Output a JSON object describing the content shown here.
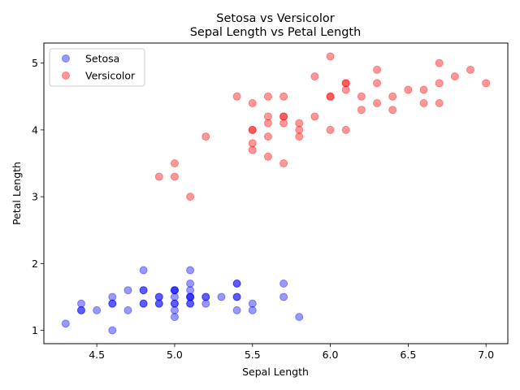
{
  "chart_data": {
    "type": "scatter",
    "title": "Setosa vs Versicolor",
    "subtitle": "Sepal Length vs Petal Length",
    "xlabel": "Sepal Length",
    "ylabel": "Petal Length",
    "xlim": [
      4.16,
      7.14
    ],
    "ylim": [
      0.8,
      5.3
    ],
    "xticks": [
      "4.5",
      "5.0",
      "5.5",
      "6.0",
      "6.5",
      "7.0"
    ],
    "yticks": [
      "1",
      "2",
      "3",
      "4",
      "5"
    ],
    "grid": false,
    "legend_position": "top-left",
    "series": [
      {
        "name": "Setosa",
        "color": "#0000ff",
        "points": [
          [
            5.1,
            1.4
          ],
          [
            4.9,
            1.4
          ],
          [
            4.7,
            1.3
          ],
          [
            4.6,
            1.5
          ],
          [
            5.0,
            1.4
          ],
          [
            5.4,
            1.7
          ],
          [
            4.6,
            1.4
          ],
          [
            5.0,
            1.5
          ],
          [
            4.4,
            1.4
          ],
          [
            4.9,
            1.5
          ],
          [
            5.4,
            1.5
          ],
          [
            4.8,
            1.6
          ],
          [
            4.8,
            1.4
          ],
          [
            4.3,
            1.1
          ],
          [
            5.8,
            1.2
          ],
          [
            5.7,
            1.5
          ],
          [
            5.4,
            1.3
          ],
          [
            5.1,
            1.4
          ],
          [
            5.7,
            1.7
          ],
          [
            5.1,
            1.5
          ],
          [
            5.4,
            1.7
          ],
          [
            5.1,
            1.5
          ],
          [
            4.6,
            1.0
          ],
          [
            5.1,
            1.7
          ],
          [
            4.8,
            1.9
          ],
          [
            5.0,
            1.6
          ],
          [
            5.0,
            1.6
          ],
          [
            5.2,
            1.5
          ],
          [
            5.2,
            1.4
          ],
          [
            4.7,
            1.6
          ],
          [
            4.8,
            1.6
          ],
          [
            5.4,
            1.5
          ],
          [
            5.2,
            1.5
          ],
          [
            5.5,
            1.4
          ],
          [
            4.9,
            1.5
          ],
          [
            5.0,
            1.2
          ],
          [
            5.5,
            1.3
          ],
          [
            4.9,
            1.4
          ],
          [
            4.4,
            1.3
          ],
          [
            5.1,
            1.5
          ],
          [
            5.0,
            1.3
          ],
          [
            4.5,
            1.3
          ],
          [
            4.4,
            1.3
          ],
          [
            5.0,
            1.6
          ],
          [
            5.1,
            1.9
          ],
          [
            4.8,
            1.4
          ],
          [
            5.1,
            1.6
          ],
          [
            4.6,
            1.4
          ],
          [
            5.3,
            1.5
          ],
          [
            5.0,
            1.4
          ]
        ]
      },
      {
        "name": "Versicolor",
        "color": "#ff0000",
        "points": [
          [
            7.0,
            4.7
          ],
          [
            6.4,
            4.5
          ],
          [
            6.9,
            4.9
          ],
          [
            5.5,
            4.0
          ],
          [
            6.5,
            4.6
          ],
          [
            5.7,
            4.5
          ],
          [
            6.3,
            4.7
          ],
          [
            4.9,
            3.3
          ],
          [
            6.6,
            4.6
          ],
          [
            5.2,
            3.9
          ],
          [
            5.0,
            3.5
          ],
          [
            5.9,
            4.2
          ],
          [
            6.0,
            4.0
          ],
          [
            6.1,
            4.7
          ],
          [
            5.6,
            3.6
          ],
          [
            6.7,
            4.4
          ],
          [
            5.6,
            4.5
          ],
          [
            5.8,
            4.1
          ],
          [
            6.2,
            4.5
          ],
          [
            5.6,
            3.9
          ],
          [
            5.9,
            4.8
          ],
          [
            6.1,
            4.0
          ],
          [
            6.3,
            4.9
          ],
          [
            6.1,
            4.7
          ],
          [
            6.4,
            4.3
          ],
          [
            6.6,
            4.4
          ],
          [
            6.8,
            4.8
          ],
          [
            6.7,
            5.0
          ],
          [
            6.0,
            4.5
          ],
          [
            5.7,
            3.5
          ],
          [
            5.5,
            3.8
          ],
          [
            5.5,
            3.7
          ],
          [
            5.8,
            3.9
          ],
          [
            6.0,
            5.1
          ],
          [
            5.4,
            4.5
          ],
          [
            6.0,
            4.5
          ],
          [
            6.7,
            4.7
          ],
          [
            6.3,
            4.4
          ],
          [
            5.6,
            4.1
          ],
          [
            5.5,
            4.0
          ],
          [
            5.5,
            4.4
          ],
          [
            6.1,
            4.6
          ],
          [
            5.8,
            4.0
          ],
          [
            5.0,
            3.3
          ],
          [
            5.6,
            4.2
          ],
          [
            5.7,
            4.2
          ],
          [
            5.7,
            4.2
          ],
          [
            6.2,
            4.3
          ],
          [
            5.1,
            3.0
          ],
          [
            5.7,
            4.1
          ]
        ]
      }
    ]
  }
}
